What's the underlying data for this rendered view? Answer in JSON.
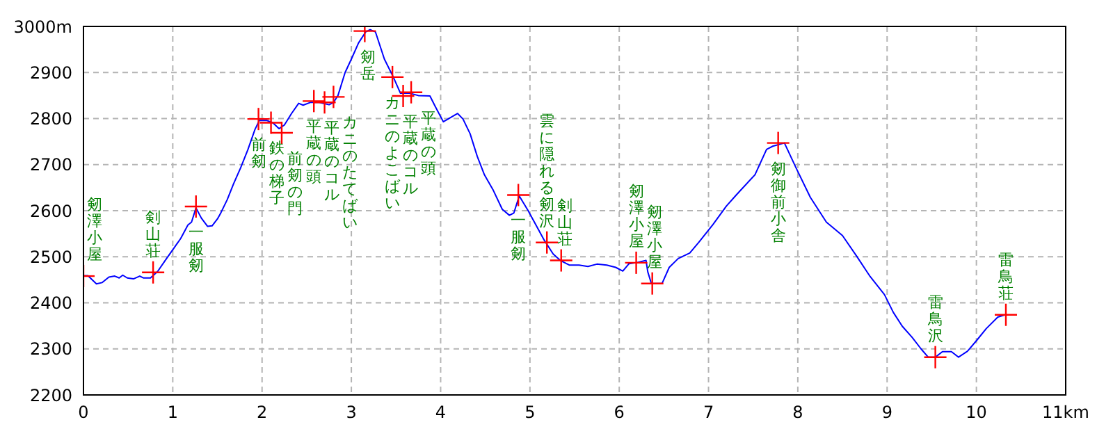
{
  "chart_data": {
    "type": "line",
    "xlim": [
      0,
      11
    ],
    "xticks": [
      0,
      1,
      2,
      3,
      4,
      5,
      6,
      7,
      8,
      9,
      10,
      {
        "value": 11,
        "label": "11km"
      }
    ],
    "ylim": [
      2200,
      3000
    ],
    "yticks": [
      2200,
      2300,
      2400,
      2500,
      2600,
      2700,
      2800,
      2900,
      {
        "value": 3000,
        "label": "3000m"
      }
    ],
    "grid": true,
    "legend": false,
    "series": [
      {
        "color": "#0000ff",
        "marker": "none",
        "line_style": "solid",
        "x": [
          0,
          0.05,
          0.145,
          0.21,
          0.285,
          0.35,
          0.4,
          0.44,
          0.49,
          0.56,
          0.63,
          0.67,
          0.75,
          0.83,
          0.93,
          1.01,
          1.09,
          1.17,
          1.21,
          1.26,
          1.32,
          1.39,
          1.44,
          1.5,
          1.54,
          1.61,
          1.68,
          1.76,
          1.84,
          1.92,
          1.97,
          2.05,
          2.12,
          2.19,
          2.25,
          2.33,
          2.41,
          2.46,
          2.54,
          2.64,
          2.75,
          2.8,
          2.85,
          2.93,
          3.0,
          3.08,
          3.16,
          3.21,
          3.27,
          3.37,
          3.47,
          3.55,
          3.65,
          3.75,
          3.88,
          3.94,
          4.03,
          4.1,
          4.19,
          4.25,
          4.33,
          4.41,
          4.49,
          4.59,
          4.69,
          4.77,
          4.82,
          4.88,
          4.98,
          5.05,
          5.16,
          5.26,
          5.34,
          5.44,
          5.55,
          5.65,
          5.75,
          5.86,
          5.96,
          6.04,
          6.11,
          6.19,
          6.3,
          6.32,
          6.36,
          6.48,
          6.56,
          6.66,
          6.79,
          6.89,
          7.05,
          7.2,
          7.31,
          7.52,
          7.65,
          7.72,
          7.85,
          7.98,
          8.14,
          8.32,
          8.5,
          8.66,
          8.81,
          8.97,
          9.07,
          9.17,
          9.28,
          9.38,
          9.46,
          9.54,
          9.62,
          9.72,
          9.8,
          9.9,
          10.01,
          10.11,
          10.24,
          10.32
        ],
        "values": [
          2459,
          2459,
          2441,
          2444,
          2456,
          2458,
          2454,
          2460,
          2454,
          2452,
          2458,
          2454,
          2454,
          2468,
          2496,
          2518,
          2540,
          2569,
          2575,
          2606,
          2584,
          2566,
          2567,
          2582,
          2596,
          2624,
          2658,
          2693,
          2732,
          2776,
          2796,
          2796,
          2791,
          2778,
          2786,
          2811,
          2833,
          2829,
          2835,
          2835,
          2830,
          2835,
          2850,
          2900,
          2929,
          2964,
          2988,
          2993,
          2988,
          2929,
          2890,
          2855,
          2855,
          2850,
          2849,
          2826,
          2793,
          2801,
          2811,
          2799,
          2767,
          2718,
          2678,
          2644,
          2603,
          2590,
          2595,
          2632,
          2600,
          2575,
          2536,
          2506,
          2492,
          2482,
          2482,
          2479,
          2484,
          2482,
          2477,
          2469,
          2485,
          2487,
          2492,
          2467,
          2442,
          2442,
          2477,
          2496,
          2508,
          2531,
          2570,
          2610,
          2634,
          2678,
          2733,
          2740,
          2747,
          2693,
          2629,
          2575,
          2546,
          2501,
          2457,
          2418,
          2379,
          2349,
          2325,
          2300,
          2282,
          2282,
          2294,
          2294,
          2282,
          2295,
          2320,
          2344,
          2369,
          2374
        ]
      },
      {
        "type": "scatter",
        "color": "#ff0000",
        "marker": "cross",
        "x": [
          0,
          0.78,
          1.26,
          1.96,
          2.1,
          2.22,
          2.58,
          2.7,
          2.8,
          3.15,
          3.46,
          3.58,
          3.67,
          4.87,
          5.19,
          5.35,
          6.19,
          6.37,
          7.78,
          9.54,
          10.33
        ],
        "values": [
          2458,
          2466,
          2609,
          2799,
          2791,
          2769,
          2838,
          2835,
          2847,
          2990,
          2890,
          2849,
          2857,
          2634,
          2531,
          2492,
          2487,
          2442,
          2747,
          2282,
          2374
        ]
      }
    ],
    "annotations": [
      {
        "text": "剱澤小屋",
        "x": 0,
        "y": 2458
      },
      {
        "text": "剣山荘",
        "x": 0.78,
        "y": 2466
      },
      {
        "text": "一服剱",
        "x": 1.26,
        "y": 2609
      },
      {
        "text": "前剱",
        "x": 1.96,
        "y": 2799
      },
      {
        "text": "鉄の梯子",
        "x": 2.1,
        "y": 2791
      },
      {
        "text": "前剱の門",
        "x": 2.22,
        "y": 2769
      },
      {
        "text": "平蔵の頭",
        "x": 2.58,
        "y": 2838
      },
      {
        "text": "平蔵のコル",
        "x": 2.7,
        "y": 2835
      },
      {
        "text": "カニのたてばい",
        "x": 2.8,
        "y": 2847
      },
      {
        "text": "剱岳",
        "x": 3.15,
        "y": 2990
      },
      {
        "text": "カニのよこばい",
        "x": 3.46,
        "y": 2890
      },
      {
        "text": "平蔵のコル",
        "x": 3.58,
        "y": 2849
      },
      {
        "text": "平蔵の頭",
        "x": 3.67,
        "y": 2857
      },
      {
        "text": "一服剱",
        "x": 4.87,
        "y": 2634
      },
      {
        "text": "雲に隠れる剱沢",
        "x": 5.19,
        "y": 2531
      },
      {
        "text": "剣山荘",
        "x": 5.35,
        "y": 2492
      },
      {
        "text": "剱澤小屋",
        "x": 6.19,
        "y": 2487
      },
      {
        "text": "剱澤小屋",
        "x": 6.37,
        "y": 2442
      },
      {
        "text": "剱御前小舎",
        "x": 7.78,
        "y": 2747
      },
      {
        "text": "雷鳥沢",
        "x": 9.54,
        "y": 2282
      },
      {
        "text": "雷鳥荘",
        "x": 10.33,
        "y": 2374
      }
    ]
  }
}
